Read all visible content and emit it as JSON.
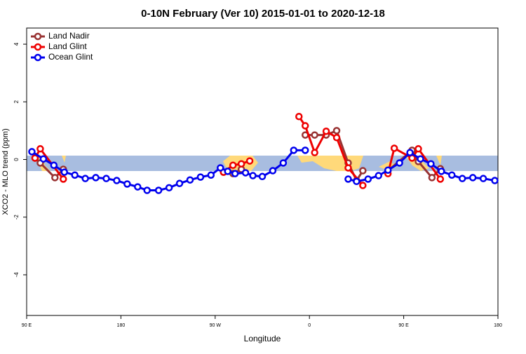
{
  "chart_data": {
    "type": "line",
    "title": "0-10N February (Ver 10)   2015-01-01 to 2020-12-18",
    "x_label": "Longitude",
    "y_label": "XCO2 - MLO trend (ppm)",
    "xlim": [
      90,
      540
    ],
    "ylim": [
      -5.41,
      4.56
    ],
    "xticks": [
      {
        "value": 90,
        "label": "90 E"
      },
      {
        "value": 180,
        "label": "180"
      },
      {
        "value": 270,
        "label": "90 W"
      },
      {
        "value": 360,
        "label": "0"
      },
      {
        "value": 450,
        "label": "90 E"
      },
      {
        "value": 540,
        "label": "180"
      }
    ],
    "yticks": [
      -4,
      -2,
      0,
      2,
      4
    ],
    "legend": "top-left",
    "series": [
      {
        "name": "Land Nadir",
        "color": "#993333",
        "x": [
          98,
          103,
          117,
          125,
          null,
          278,
          287,
          295,
          null,
          356,
          365,
          376,
          386,
          397,
          405,
          411,
          null,
          435,
          458,
          464,
          477,
          485
        ],
        "values": [
          0.05,
          -0.12,
          -0.63,
          -0.34,
          null,
          -0.44,
          -0.49,
          -0.34,
          null,
          0.85,
          0.85,
          0.85,
          1.0,
          -0.12,
          -0.73,
          -0.39,
          null,
          -0.39,
          0.32,
          -0.07,
          -0.63,
          -0.32
        ]
      },
      {
        "name": "Land Glint",
        "color": "#ee0000",
        "x": [
          98,
          103,
          125,
          null,
          278,
          287,
          295,
          303,
          null,
          350,
          356,
          365,
          376,
          386,
          397,
          411,
          null,
          435,
          441,
          458,
          464,
          485
        ],
        "values": [
          0.05,
          0.37,
          -0.68,
          null,
          -0.44,
          -0.2,
          -0.15,
          -0.05,
          null,
          1.49,
          1.17,
          0.24,
          0.98,
          0.76,
          -0.29,
          -0.9,
          null,
          -0.49,
          0.39,
          0.05,
          0.37,
          -0.68
        ]
      },
      {
        "name": "Ocean Glint",
        "color": "#0000ee",
        "x": [
          95,
          106,
          116,
          126,
          136,
          146,
          156,
          166,
          176,
          186,
          196,
          205,
          216,
          226,
          236,
          246,
          256,
          266,
          275,
          282,
          289,
          299,
          306,
          315,
          325,
          335,
          345,
          356,
          null,
          397,
          405,
          416,
          426,
          435,
          446,
          456,
          466,
          476,
          486,
          496,
          506,
          516,
          526,
          537
        ],
        "values": [
          0.27,
          0.02,
          -0.2,
          -0.44,
          -0.54,
          -0.66,
          -0.63,
          -0.66,
          -0.73,
          -0.85,
          -0.95,
          -1.07,
          -1.07,
          -0.98,
          -0.83,
          -0.71,
          -0.61,
          -0.54,
          -0.29,
          -0.41,
          -0.49,
          -0.46,
          -0.56,
          -0.59,
          -0.39,
          -0.12,
          0.32,
          0.32,
          null,
          -0.68,
          -0.76,
          -0.68,
          -0.56,
          -0.37,
          -0.12,
          0.24,
          0.02,
          -0.15,
          -0.41,
          -0.54,
          -0.66,
          -0.63,
          -0.66,
          -0.73
        ]
      }
    ]
  }
}
